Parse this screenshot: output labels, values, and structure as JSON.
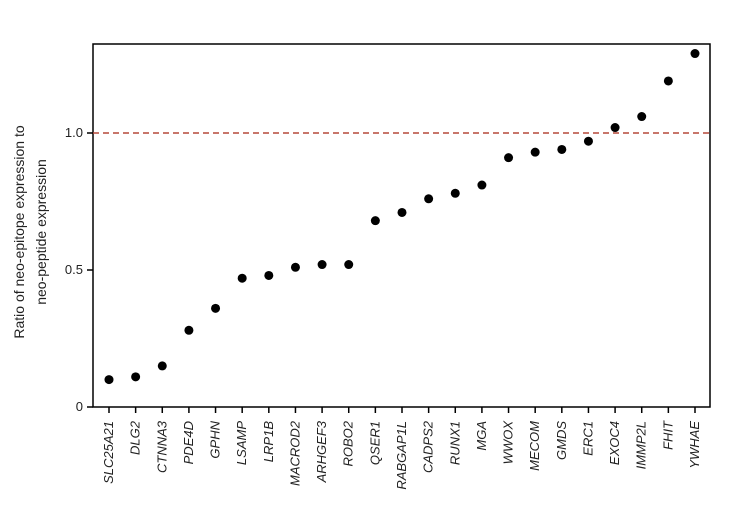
{
  "chart_data": {
    "type": "scatter",
    "ylabel_line1": "Ratio of neo-epitope expression to",
    "ylabel_line2": "neo-peptide expression",
    "xlabel": "",
    "ylim": [
      0,
      1.3
    ],
    "yticks": [
      0,
      0.5,
      1.0
    ],
    "ytick_labels": [
      "0",
      "0.5",
      "1.0"
    ],
    "reference_line": 1.0,
    "reference_color": "#b5483a",
    "point_color": "#000000",
    "grid": false,
    "categories": [
      "SLC25A21",
      "DLG2",
      "CTNNA3",
      "PDE4D",
      "GPHN",
      "LSAMP",
      "LRP1B",
      "MACROD2",
      "ARHGEF3",
      "ROBO2",
      "QSER1",
      "RABGAP1L",
      "CADPS2",
      "RUNX1",
      "MGA",
      "WWOX",
      "MECOM",
      "GMDS",
      "ERC1",
      "EXOC4",
      "IMMP2L",
      "FHIT",
      "YWHAE"
    ],
    "values": [
      0.1,
      0.11,
      0.15,
      0.28,
      0.36,
      0.47,
      0.48,
      0.51,
      0.52,
      0.52,
      0.68,
      0.71,
      0.76,
      0.78,
      0.81,
      0.91,
      0.93,
      0.94,
      0.97,
      1.02,
      1.06,
      1.19,
      1.29
    ]
  }
}
